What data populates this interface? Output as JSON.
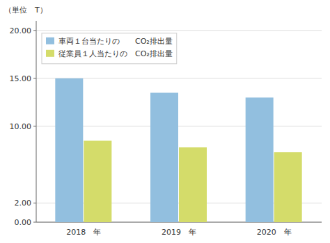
{
  "chart_data": {
    "type": "bar",
    "y_label": "（単位　T）",
    "categories": [
      "2018　年",
      "2019　年",
      "2020　年"
    ],
    "series": [
      {
        "name": "車両１台当たりの　　CO₂排出量",
        "color": "#92BFDF",
        "values": [
          15.0,
          13.5,
          13.0
        ]
      },
      {
        "name": "従業員１人当たりの　CO₂排出量",
        "color": "#D4DC6A",
        "values": [
          8.5,
          7.8,
          7.3
        ]
      }
    ],
    "ylim": [
      0,
      21.0
    ],
    "yticks": [
      {
        "value": 0.0,
        "label": "0.00"
      },
      {
        "value": 2.0,
        "label": "2.00"
      },
      {
        "value": 10.0,
        "label": "10.00"
      },
      {
        "value": 15.0,
        "label": "15.00"
      },
      {
        "value": 20.0,
        "label": "20.00"
      }
    ],
    "grid": true,
    "legend": "upper left"
  }
}
